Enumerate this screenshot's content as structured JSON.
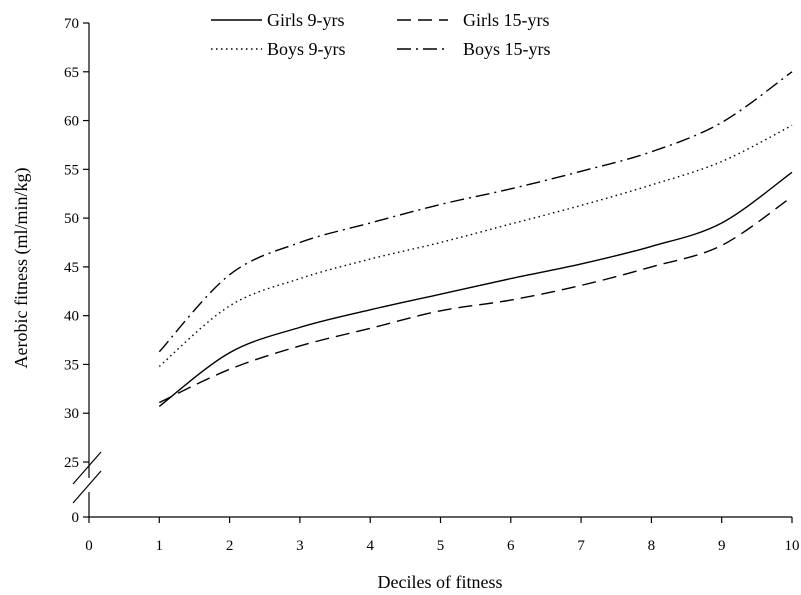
{
  "chart_data": {
    "type": "line",
    "title": "",
    "xlabel": "Deciles of fitness",
    "ylabel": "Aerobic fitness (ml/min/kg)",
    "x_ticks": [
      0,
      1,
      2,
      3,
      4,
      5,
      6,
      7,
      8,
      9,
      10
    ],
    "y_ticks": [
      0,
      25,
      30,
      35,
      40,
      45,
      50,
      55,
      60,
      65,
      70
    ],
    "xlim": [
      0,
      10
    ],
    "ylim": [
      0,
      70
    ],
    "y_axis_break": [
      0,
      25
    ],
    "grid": false,
    "legend_position": "top",
    "x": [
      1,
      2,
      3,
      4,
      5,
      6,
      7,
      8,
      9,
      10
    ],
    "series": [
      {
        "name": "Girls 9-yrs",
        "values": [
          30.7,
          36.2,
          38.8,
          40.6,
          42.2,
          43.8,
          45.3,
          47.1,
          49.5,
          54.7
        ],
        "dash": "solid"
      },
      {
        "name": "Girls 15-yrs",
        "values": [
          31.1,
          34.5,
          36.9,
          38.7,
          40.5,
          41.6,
          43.1,
          45.0,
          47.2,
          52.2
        ],
        "dash": "dashed"
      },
      {
        "name": "Boys 9-yrs",
        "values": [
          34.8,
          41.0,
          43.8,
          45.8,
          47.5,
          49.4,
          51.3,
          53.4,
          55.8,
          59.5
        ],
        "dash": "dotted"
      },
      {
        "name": "Boys 15-yrs",
        "values": [
          36.3,
          44.2,
          47.5,
          49.5,
          51.4,
          53.0,
          54.8,
          56.8,
          59.8,
          65.0
        ],
        "dash": "dashdot"
      }
    ]
  }
}
